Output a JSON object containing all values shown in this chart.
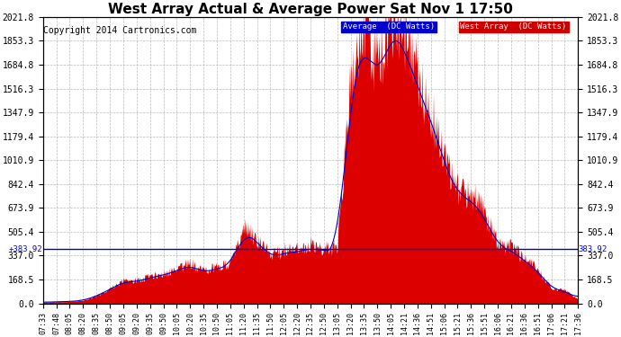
{
  "title": "West Array Actual & Average Power Sat Nov 1 17:50",
  "copyright": "Copyright 2014 Cartronics.com",
  "legend_labels": [
    "Average  (DC Watts)",
    "West Array  (DC Watts)"
  ],
  "legend_colors": [
    "#0000cc",
    "#cc0000"
  ],
  "ymin": 0.0,
  "ymax": 2021.8,
  "yticks": [
    0.0,
    168.5,
    337.0,
    505.4,
    673.9,
    842.4,
    1010.9,
    1179.4,
    1347.9,
    1516.3,
    1684.8,
    1853.3,
    2021.8
  ],
  "ytick_labels": [
    "0.0",
    "168.5",
    "337.0",
    "505.4",
    "673.9",
    "842.4",
    "1010.9",
    "1179.4",
    "1347.9",
    "1516.3",
    "1684.8",
    "1853.3",
    "2021.8"
  ],
  "hline_value": 383.92,
  "bg_color": "#ffffff",
  "plot_bg_color": "#ffffff",
  "grid_color": "#aaaaaa",
  "fill_color": "#dd0000",
  "line_color": "#dd0000",
  "avg_line_color": "#0000cc",
  "title_fontsize": 11,
  "copyright_fontsize": 7,
  "xtick_fontsize": 6,
  "ytick_fontsize": 7,
  "x_labels": [
    "07:33",
    "07:48",
    "08:05",
    "08:20",
    "08:35",
    "08:50",
    "09:05",
    "09:20",
    "09:35",
    "09:50",
    "10:05",
    "10:20",
    "10:35",
    "10:50",
    "11:05",
    "11:20",
    "11:35",
    "11:50",
    "12:05",
    "12:20",
    "12:35",
    "12:50",
    "13:05",
    "13:20",
    "13:35",
    "13:50",
    "14:05",
    "14:21",
    "14:36",
    "14:51",
    "15:06",
    "15:21",
    "15:36",
    "15:51",
    "16:06",
    "16:21",
    "16:36",
    "16:51",
    "17:06",
    "17:21",
    "17:36"
  ]
}
